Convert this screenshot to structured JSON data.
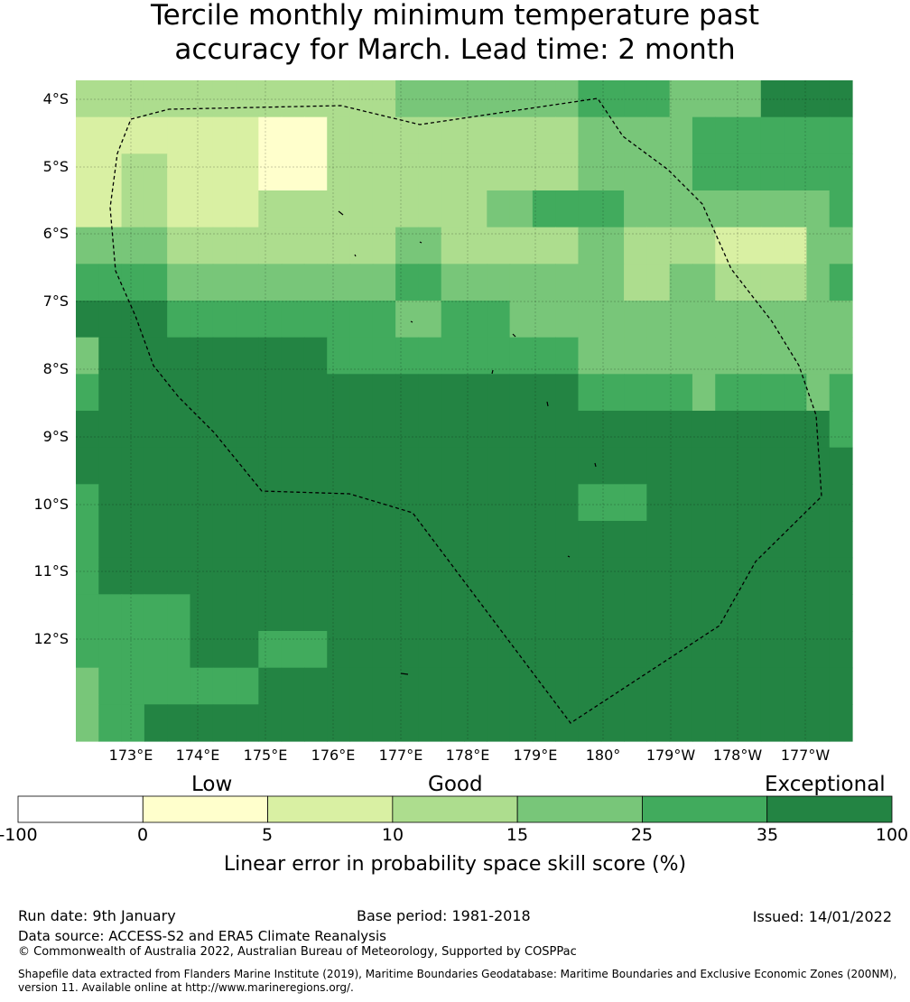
{
  "title": {
    "line1": "Tercile monthly minimum temperature past",
    "line2": "accuracy for March. Lead time: 2 month"
  },
  "map": {
    "lat_labels": [
      "4°S",
      "5°S",
      "6°S",
      "7°S",
      "8°S",
      "9°S",
      "10°S",
      "11°S",
      "12°S"
    ],
    "lon_labels": [
      "173°E",
      "174°E",
      "175°E",
      "176°E",
      "177°E",
      "178°E",
      "179°E",
      "180°",
      "179°W",
      "178°W",
      "177°W"
    ],
    "grid_colors": [
      "#ffffcc",
      "#d9f0a3",
      "#addd8e",
      "#78c679",
      "#41ab5d",
      "#238443"
    ],
    "grid": [
      [
        2,
        2,
        2,
        2,
        2,
        2,
        2,
        2,
        2,
        2,
        2,
        2,
        2,
        2,
        3,
        3,
        3,
        3,
        3,
        3,
        3,
        3,
        4,
        4,
        4,
        4,
        3,
        3,
        3,
        3,
        5,
        5,
        5,
        5
      ],
      [
        1,
        1,
        1,
        1,
        1,
        1,
        1,
        1,
        0,
        0,
        0,
        2,
        2,
        2,
        2,
        2,
        2,
        2,
        2,
        2,
        2,
        2,
        3,
        3,
        3,
        3,
        3,
        4,
        4,
        4,
        4,
        4,
        4,
        4
      ],
      [
        1,
        1,
        2,
        2,
        1,
        1,
        1,
        1,
        0,
        0,
        0,
        2,
        2,
        2,
        2,
        2,
        2,
        2,
        2,
        2,
        2,
        2,
        3,
        3,
        3,
        3,
        3,
        4,
        4,
        4,
        4,
        4,
        4,
        4
      ],
      [
        1,
        1,
        2,
        2,
        1,
        1,
        1,
        1,
        2,
        2,
        2,
        2,
        2,
        2,
        2,
        2,
        2,
        2,
        3,
        3,
        4,
        4,
        4,
        4,
        3,
        3,
        3,
        3,
        3,
        3,
        3,
        3,
        3,
        4
      ],
      [
        3,
        3,
        3,
        3,
        2,
        2,
        2,
        2,
        2,
        2,
        2,
        2,
        2,
        2,
        3,
        3,
        2,
        2,
        2,
        2,
        2,
        2,
        3,
        3,
        2,
        2,
        2,
        2,
        1,
        1,
        1,
        1,
        3,
        3
      ],
      [
        4,
        4,
        4,
        4,
        3,
        3,
        3,
        3,
        3,
        3,
        3,
        3,
        3,
        3,
        4,
        4,
        3,
        3,
        3,
        3,
        3,
        3,
        3,
        3,
        2,
        2,
        3,
        3,
        2,
        2,
        2,
        2,
        3,
        4
      ],
      [
        5,
        5,
        5,
        5,
        4,
        4,
        4,
        4,
        4,
        4,
        4,
        4,
        4,
        4,
        3,
        3,
        4,
        4,
        4,
        3,
        3,
        3,
        3,
        3,
        3,
        3,
        3,
        3,
        3,
        3,
        3,
        3,
        3,
        3
      ],
      [
        3,
        5,
        5,
        5,
        5,
        5,
        5,
        5,
        5,
        5,
        5,
        4,
        4,
        4,
        4,
        4,
        4,
        4,
        4,
        4,
        4,
        4,
        3,
        3,
        3,
        3,
        3,
        3,
        3,
        3,
        3,
        3,
        3,
        3
      ],
      [
        4,
        5,
        5,
        5,
        5,
        5,
        5,
        5,
        5,
        5,
        5,
        5,
        5,
        5,
        5,
        5,
        5,
        5,
        5,
        5,
        5,
        5,
        4,
        4,
        4,
        4,
        4,
        3,
        4,
        4,
        4,
        4,
        3,
        4
      ],
      [
        5,
        5,
        5,
        5,
        5,
        5,
        5,
        5,
        5,
        5,
        5,
        5,
        5,
        5,
        5,
        5,
        5,
        5,
        5,
        5,
        5,
        5,
        5,
        5,
        5,
        5,
        5,
        5,
        5,
        5,
        5,
        5,
        5,
        4
      ],
      [
        5,
        5,
        5,
        5,
        5,
        5,
        5,
        5,
        5,
        5,
        5,
        5,
        5,
        5,
        5,
        5,
        5,
        5,
        5,
        5,
        5,
        5,
        5,
        5,
        5,
        5,
        5,
        5,
        5,
        5,
        5,
        5,
        5,
        5
      ],
      [
        4,
        5,
        5,
        5,
        5,
        5,
        5,
        5,
        5,
        5,
        5,
        5,
        5,
        5,
        5,
        5,
        5,
        5,
        5,
        5,
        5,
        5,
        4,
        4,
        4,
        5,
        5,
        5,
        5,
        5,
        5,
        5,
        5,
        5
      ],
      [
        4,
        5,
        5,
        5,
        5,
        5,
        5,
        5,
        5,
        5,
        5,
        5,
        5,
        5,
        5,
        5,
        5,
        5,
        5,
        5,
        5,
        5,
        5,
        5,
        5,
        5,
        5,
        5,
        5,
        5,
        5,
        5,
        5,
        5
      ],
      [
        4,
        5,
        5,
        5,
        5,
        5,
        5,
        5,
        5,
        5,
        5,
        5,
        5,
        5,
        5,
        5,
        5,
        5,
        5,
        5,
        5,
        5,
        5,
        5,
        5,
        5,
        5,
        5,
        5,
        5,
        5,
        5,
        5,
        5
      ],
      [
        4,
        4,
        4,
        4,
        4,
        5,
        5,
        5,
        5,
        5,
        5,
        5,
        5,
        5,
        5,
        5,
        5,
        5,
        5,
        5,
        5,
        5,
        5,
        5,
        5,
        5,
        5,
        5,
        5,
        5,
        5,
        5,
        5,
        5
      ],
      [
        4,
        4,
        4,
        4,
        4,
        5,
        5,
        5,
        4,
        4,
        4,
        5,
        5,
        5,
        5,
        5,
        5,
        5,
        5,
        5,
        5,
        5,
        5,
        5,
        5,
        5,
        5,
        5,
        5,
        5,
        5,
        5,
        5,
        5
      ],
      [
        3,
        4,
        4,
        4,
        4,
        4,
        4,
        4,
        5,
        5,
        5,
        5,
        5,
        5,
        5,
        5,
        5,
        5,
        5,
        5,
        5,
        5,
        5,
        5,
        5,
        5,
        5,
        5,
        5,
        5,
        5,
        5,
        5,
        5
      ],
      [
        3,
        4,
        4,
        5,
        5,
        5,
        5,
        5,
        5,
        5,
        5,
        5,
        5,
        5,
        5,
        5,
        5,
        5,
        5,
        5,
        5,
        5,
        5,
        5,
        5,
        5,
        5,
        5,
        5,
        5,
        5,
        5,
        5,
        5
      ]
    ]
  },
  "categories": {
    "low": "Low",
    "good": "Good",
    "exceptional": "Exceptional"
  },
  "colorbar": {
    "colors": [
      "#ffffff",
      "#ffffcc",
      "#d9f0a3",
      "#addd8e",
      "#78c679",
      "#41ab5d",
      "#238443"
    ],
    "ticks": [
      "-100",
      "0",
      "5",
      "10",
      "15",
      "25",
      "35",
      "100"
    ],
    "label": "Linear error in probability space skill score (%)"
  },
  "footer": {
    "run_date": "Run date: 9th January",
    "base_period": "Base period: 1981-2018",
    "issued": "Issued: 14/01/2022",
    "data_source": "Data source: ACCESS-S2 and ERA5 Climate Reanalysis",
    "copyright": "© Commonwealth of Australia 2022, Australian Bureau of Meteorology, Supported by COSPPac",
    "shapefile": "Shapefile data extracted from Flanders Marine Institute (2019), Maritime Boundaries Geodatabase: Maritime Boundaries and Exclusive Economic Zones (200NM), version 11. Available online at http://www.marineregions.org/."
  }
}
